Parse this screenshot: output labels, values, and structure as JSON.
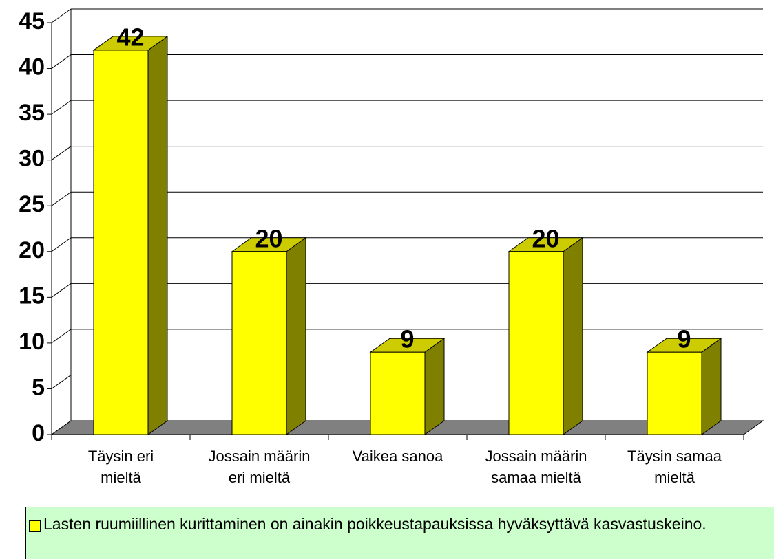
{
  "chart_data": {
    "type": "bar3d",
    "categories": [
      [
        "Täysin eri",
        "mieltä"
      ],
      [
        "Jossain määrin",
        "eri mieltä"
      ],
      [
        "Vaikea sanoa"
      ],
      [
        "Jossain määrin",
        "samaa mieltä"
      ],
      [
        "Täysin samaa",
        "mieltä"
      ]
    ],
    "series": [
      {
        "name": "Lasten ruumiillinen kurittaminen on ainakin poikkeustapauksissa hyväksyttävä kasvastuskeino.",
        "color": "#ffff00",
        "values": [
          42,
          20,
          9,
          20,
          9
        ]
      }
    ],
    "ylim": [
      0,
      45
    ],
    "yticks": [
      0,
      5,
      10,
      15,
      20,
      25,
      30,
      35,
      40,
      45
    ],
    "grid": true,
    "legend": "bottom"
  }
}
